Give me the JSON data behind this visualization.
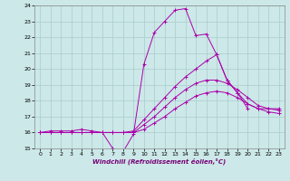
{
  "title": "",
  "xlabel": "Windchill (Refroidissement éolien,°C)",
  "background_color": "#cce8e8",
  "grid_color": "#aacccc",
  "line_color": "#aa00aa",
  "xlim": [
    -0.5,
    23.5
  ],
  "ylim": [
    15,
    24
  ],
  "yticks": [
    15,
    16,
    17,
    18,
    19,
    20,
    21,
    22,
    23,
    24
  ],
  "xticks": [
    0,
    1,
    2,
    3,
    4,
    5,
    6,
    7,
    8,
    9,
    10,
    11,
    12,
    13,
    14,
    15,
    16,
    17,
    18,
    19,
    20,
    21,
    22,
    23
  ],
  "series": [
    {
      "x": [
        0,
        1,
        2,
        3,
        4,
        5,
        6,
        7,
        8,
        9,
        10,
        11,
        12,
        13,
        14,
        15,
        16,
        17,
        18,
        19,
        20
      ],
      "y": [
        16.0,
        16.1,
        16.1,
        16.1,
        16.2,
        16.1,
        16.0,
        15.0,
        14.8,
        15.9,
        20.3,
        22.3,
        23.0,
        23.7,
        23.8,
        22.1,
        22.2,
        20.9,
        19.3,
        18.5,
        17.5
      ]
    },
    {
      "x": [
        0,
        1,
        2,
        3,
        4,
        5,
        6,
        7,
        8,
        9,
        10,
        11,
        12,
        13,
        14,
        15,
        16,
        17,
        18,
        19,
        20,
        21,
        22,
        23
      ],
      "y": [
        16.0,
        16.0,
        16.0,
        16.0,
        16.0,
        16.0,
        16.0,
        16.0,
        16.0,
        16.1,
        16.8,
        17.5,
        18.2,
        18.9,
        19.5,
        20.0,
        20.5,
        20.9,
        19.3,
        18.5,
        17.8,
        17.5,
        17.5,
        17.5
      ]
    },
    {
      "x": [
        0,
        1,
        2,
        3,
        4,
        5,
        6,
        7,
        8,
        9,
        10,
        11,
        12,
        13,
        14,
        15,
        16,
        17,
        18,
        19,
        20,
        21,
        22,
        23
      ],
      "y": [
        16.0,
        16.0,
        16.0,
        16.0,
        16.0,
        16.0,
        16.0,
        16.0,
        16.0,
        16.0,
        16.5,
        17.0,
        17.6,
        18.2,
        18.7,
        19.1,
        19.3,
        19.3,
        19.1,
        18.7,
        18.2,
        17.7,
        17.5,
        17.4
      ]
    },
    {
      "x": [
        0,
        1,
        2,
        3,
        4,
        5,
        6,
        7,
        8,
        9,
        10,
        11,
        12,
        13,
        14,
        15,
        16,
        17,
        18,
        19,
        20,
        21,
        22,
        23
      ],
      "y": [
        16.0,
        16.0,
        16.0,
        16.0,
        16.0,
        16.0,
        16.0,
        16.0,
        16.0,
        16.0,
        16.2,
        16.6,
        17.0,
        17.5,
        17.9,
        18.3,
        18.5,
        18.6,
        18.5,
        18.2,
        17.8,
        17.5,
        17.3,
        17.2
      ]
    }
  ]
}
